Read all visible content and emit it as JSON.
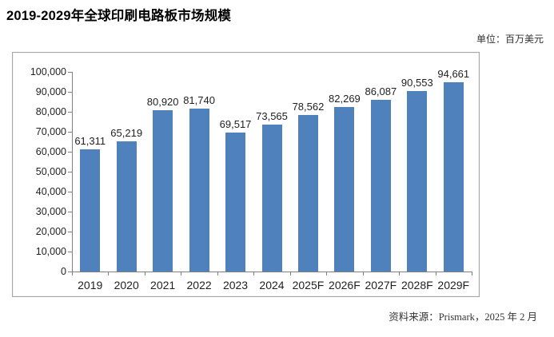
{
  "page": {
    "title": "2019-2029年全球印刷电路板市场规模",
    "unit_label": "单位：百万美元",
    "source_label": "资料来源：Prismark，2025 年 2 月"
  },
  "chart_data": {
    "type": "bar",
    "title": "2019-2029年全球印刷电路板市场规模",
    "unit": "百万美元",
    "source": "Prismark，2025 年 2 月",
    "categories": [
      "2019",
      "2020",
      "2021",
      "2022",
      "2023",
      "2024",
      "2025F",
      "2026F",
      "2027F",
      "2028F",
      "2029F"
    ],
    "values": [
      61311,
      65219,
      80920,
      81740,
      69517,
      73565,
      78562,
      82269,
      86087,
      90553,
      94661
    ],
    "value_labels": [
      "61,311",
      "65,219",
      "80,920",
      "81,740",
      "69,517",
      "73,565",
      "78,562",
      "82,269",
      "86,087",
      "90,553",
      "94,661"
    ],
    "xlabel": "",
    "ylabel": "",
    "ylim": [
      0,
      100000
    ],
    "ytick_step": 10000,
    "ytick_labels": [
      "0",
      "10,000",
      "20,000",
      "30,000",
      "40,000",
      "50,000",
      "60,000",
      "70,000",
      "80,000",
      "90,000",
      "100,000"
    ],
    "bar_color": "#4F81BD",
    "axis_color": "#808080",
    "grid": false,
    "legend_position": "none"
  }
}
